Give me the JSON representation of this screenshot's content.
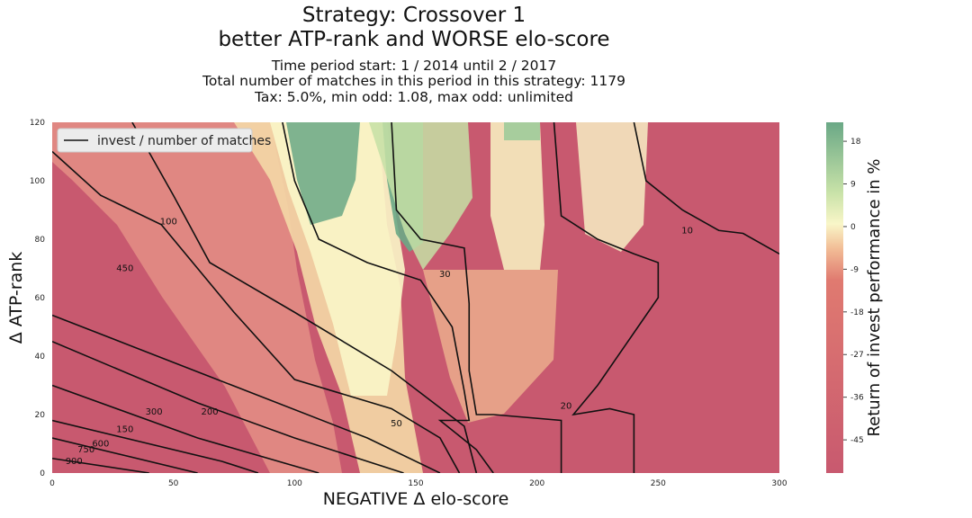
{
  "title_line1": "Strategy: Crossover 1",
  "title_line2": "better ATP-rank and WORSE elo-score",
  "subtitle_line1": "Time period start: 1 / 2014 until 2 / 2017",
  "subtitle_line2": "Total number of matches in this period in this strategy: 1179",
  "subtitle_line3": "Tax: 5.0%, min odd: 1.08, max odd: unlimited",
  "chart_data": {
    "type": "heatmap",
    "xlabel": "NEGATIVE Δ elo-score",
    "ylabel": "Δ ATP-rank",
    "xlim": [
      0,
      300
    ],
    "ylim": [
      0,
      120
    ],
    "x_ticks": [
      0,
      50,
      100,
      150,
      200,
      250,
      300
    ],
    "y_ticks": [
      0,
      20,
      40,
      60,
      80,
      100,
      120
    ],
    "colorbar": {
      "label": "Return of invest performance in %",
      "ticks": [
        18,
        9,
        0,
        -9,
        -18,
        -27,
        -36,
        -45
      ],
      "range": [
        -52,
        22
      ],
      "colormap": "RdYlGn",
      "colors": {
        "low": "#c8596f",
        "mid": "#f9f6c8",
        "high": "#6aa886"
      }
    },
    "legend": {
      "label": "invest / number of matches",
      "placement": "top-left"
    },
    "contour_lines": [
      {
        "level": "900",
        "points": [
          [
            0,
            5
          ],
          [
            40,
            0
          ]
        ]
      },
      {
        "level": "750",
        "points": [
          [
            0,
            12
          ],
          [
            60,
            0
          ]
        ]
      },
      {
        "level": "600",
        "points": [
          [
            0,
            18
          ],
          [
            70,
            4
          ],
          [
            85,
            0
          ]
        ]
      },
      {
        "level": "450",
        "points": [
          [
            0,
            30
          ],
          [
            60,
            12
          ],
          [
            110,
            0
          ]
        ]
      },
      {
        "level": "300",
        "points": [
          [
            0,
            45
          ],
          [
            60,
            24
          ],
          [
            100,
            12
          ],
          [
            145,
            0
          ]
        ]
      },
      {
        "level": "200",
        "points": [
          [
            0,
            54
          ],
          [
            65,
            33
          ],
          [
            130,
            12
          ],
          [
            160,
            0
          ]
        ]
      },
      {
        "level": "150",
        "points": [
          [
            0,
            110
          ],
          [
            20,
            95
          ],
          [
            45,
            85
          ],
          [
            75,
            55
          ],
          [
            100,
            32
          ],
          [
            140,
            22
          ],
          [
            160,
            12
          ],
          [
            168,
            0
          ]
        ]
      },
      {
        "level": "100",
        "points": [
          [
            33,
            120
          ],
          [
            50,
            95
          ],
          [
            65,
            72
          ],
          [
            100,
            55
          ],
          [
            140,
            35
          ],
          [
            170,
            16
          ],
          [
            175,
            0
          ]
        ]
      },
      {
        "level": "50",
        "points": [
          [
            95,
            120
          ],
          [
            100,
            100
          ],
          [
            110,
            80
          ],
          [
            130,
            72
          ],
          [
            152,
            66
          ],
          [
            165,
            50
          ],
          [
            170,
            28
          ],
          [
            172,
            18
          ],
          [
            160,
            18
          ],
          [
            175,
            8
          ],
          [
            182,
            0
          ]
        ]
      },
      {
        "level": "30",
        "points": [
          [
            140,
            120
          ],
          [
            142,
            90
          ],
          [
            152,
            80
          ],
          [
            170,
            77
          ],
          [
            172,
            58
          ],
          [
            172,
            35
          ],
          [
            175,
            20
          ],
          [
            182,
            20
          ],
          [
            210,
            18
          ],
          [
            210,
            0
          ]
        ]
      },
      {
        "level": "20",
        "points": [
          [
            207,
            120
          ],
          [
            210,
            88
          ],
          [
            225,
            80
          ],
          [
            240,
            75
          ],
          [
            250,
            72
          ],
          [
            250,
            60
          ],
          [
            240,
            48
          ],
          [
            225,
            30
          ],
          [
            215,
            20
          ],
          [
            230,
            22
          ],
          [
            240,
            20
          ],
          [
            240,
            0
          ]
        ]
      },
      {
        "level": "10",
        "points": [
          [
            240,
            120
          ],
          [
            245,
            100
          ],
          [
            260,
            90
          ],
          [
            275,
            83
          ],
          [
            285,
            82
          ],
          [
            300,
            75
          ]
        ]
      }
    ],
    "contour_labels": [
      {
        "text": "900",
        "x": 9,
        "y": 4
      },
      {
        "text": "750",
        "x": 14,
        "y": 8
      },
      {
        "text": "600",
        "x": 20,
        "y": 10
      },
      {
        "text": "450",
        "x": 30,
        "y": 70
      },
      {
        "text": "300",
        "x": 42,
        "y": 21
      },
      {
        "text": "200",
        "x": 65,
        "y": 21
      },
      {
        "text": "150",
        "x": 30,
        "y": 15
      },
      {
        "text": "100",
        "x": 48,
        "y": 86
      },
      {
        "text": "50",
        "x": 142,
        "y": 17
      },
      {
        "text": "30",
        "x": 162,
        "y": 68
      },
      {
        "text": "20",
        "x": 212,
        "y": 23
      },
      {
        "text": "10",
        "x": 262,
        "y": 83
      }
    ]
  }
}
